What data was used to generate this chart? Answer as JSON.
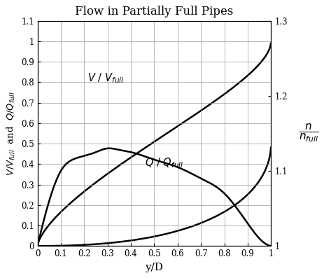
{
  "title": "Flow in Partially Full Pipes",
  "xlabel": "y/D",
  "xlim": [
    0,
    1.0
  ],
  "ylim_left": [
    0,
    1.1
  ],
  "ylim_right": [
    1.0,
    1.3
  ],
  "xticks": [
    0,
    0.1,
    0.2,
    0.3,
    0.4,
    0.5,
    0.6,
    0.7,
    0.8,
    0.9,
    1.0
  ],
  "yticks_left": [
    0,
    0.1,
    0.2,
    0.3,
    0.4,
    0.5,
    0.6,
    0.7,
    0.8,
    0.9,
    1.0,
    1.1
  ],
  "yticks_right": [
    1.0,
    1.1,
    1.2,
    1.3
  ],
  "line_color": "#000000",
  "background_color": "#ffffff",
  "grid_color": "#999999",
  "title_fontsize": 12,
  "label_fontsize": 10,
  "tick_fontsize": 8.5,
  "n_nfull_yD": [
    0.0,
    0.05,
    0.1,
    0.15,
    0.2,
    0.25,
    0.3,
    0.35,
    0.4,
    0.5,
    0.6,
    0.7,
    0.8,
    0.9,
    0.95,
    1.0
  ],
  "n_nfull_vals": [
    1.0,
    1.06,
    1.1,
    1.115,
    1.12,
    1.125,
    1.13,
    1.128,
    1.125,
    1.115,
    1.105,
    1.09,
    1.07,
    1.03,
    1.01,
    1.0
  ]
}
